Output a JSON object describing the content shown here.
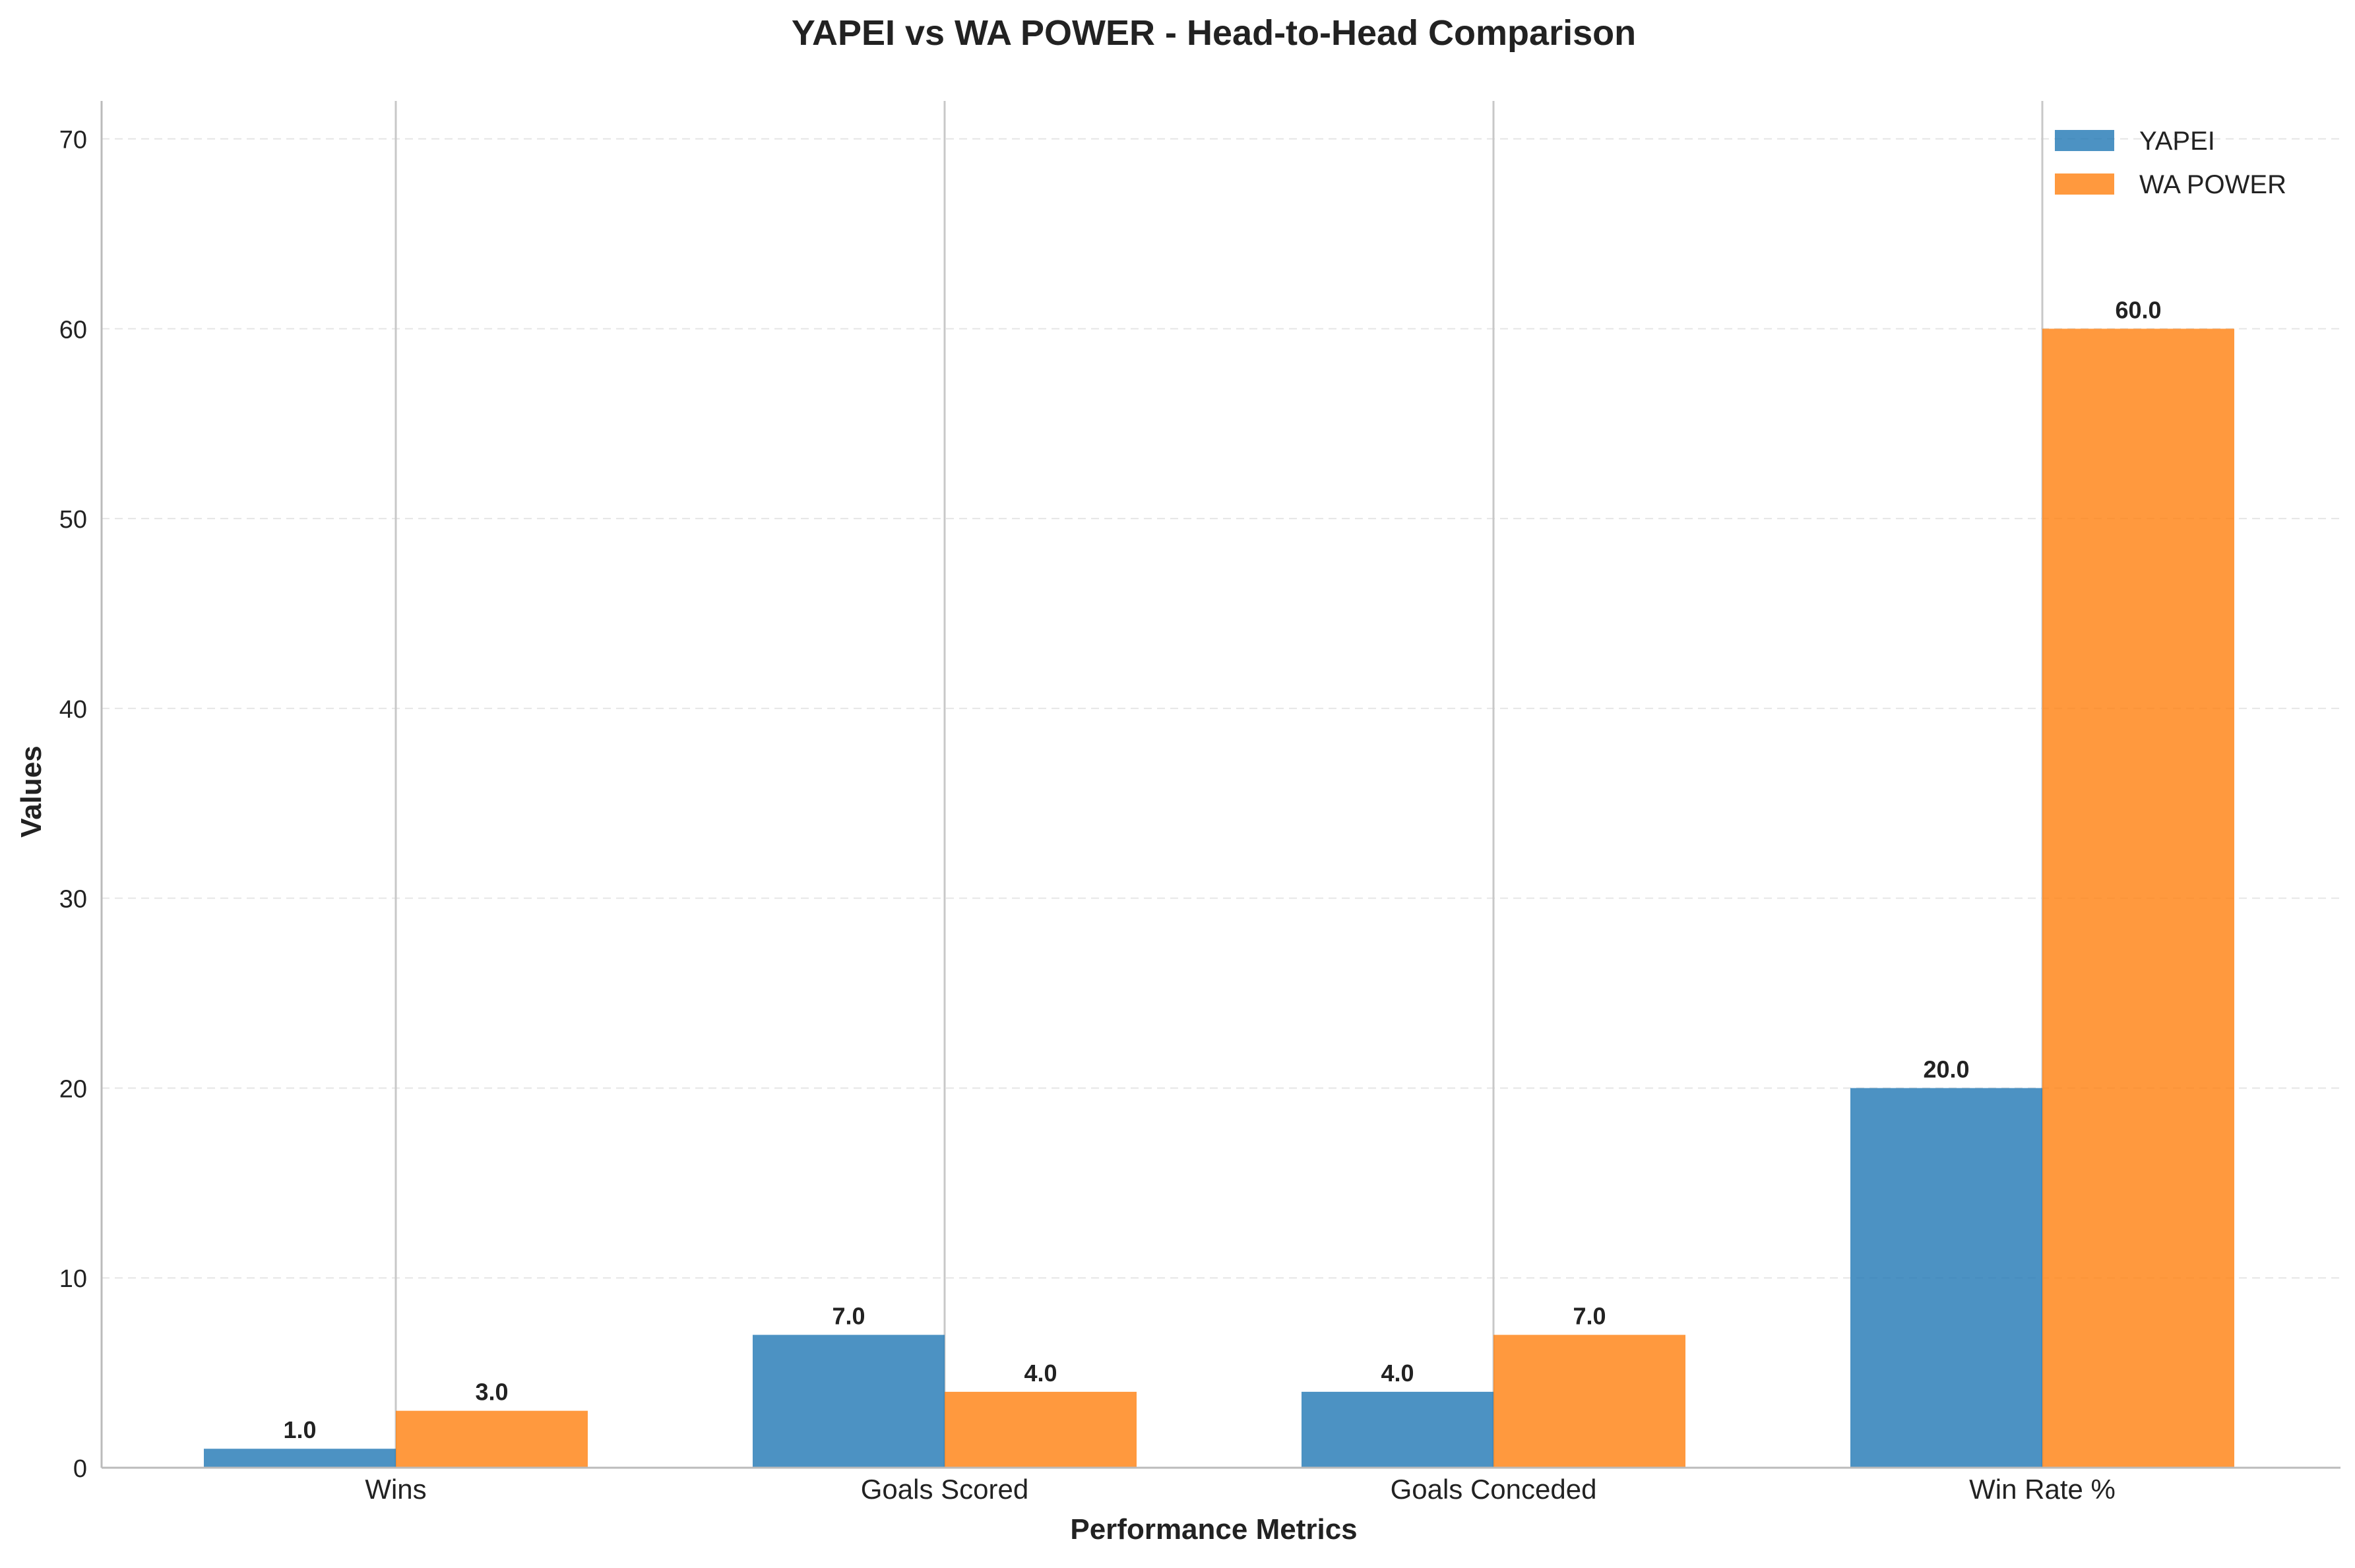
{
  "chart_data": {
    "type": "bar",
    "title": "YAPEI vs WA POWER - Head-to-Head Comparison",
    "xlabel": "Performance Metrics",
    "ylabel": "Values",
    "categories": [
      "Wins",
      "Goals Scored",
      "Goals Conceded",
      "Win Rate %"
    ],
    "series": [
      {
        "name": "YAPEI",
        "values": [
          1.0,
          7.0,
          4.0,
          20.0
        ],
        "color": "#1f77b4"
      },
      {
        "name": "WA POWER",
        "values": [
          3.0,
          4.0,
          7.0,
          60.0
        ],
        "color": "#ff7f0e"
      }
    ],
    "ylim": [
      0,
      72
    ],
    "yticks": [
      0,
      10,
      20,
      30,
      40,
      50,
      60,
      70
    ],
    "value_labels": [
      [
        "1.0",
        "7.0",
        "4.0",
        "20.0"
      ],
      [
        "3.0",
        "4.0",
        "7.0",
        "60.0"
      ]
    ],
    "grid": {
      "y": "dashed",
      "x": "solid-at-category-centers"
    },
    "legend": "top-right",
    "bar_opacity": 0.8
  }
}
